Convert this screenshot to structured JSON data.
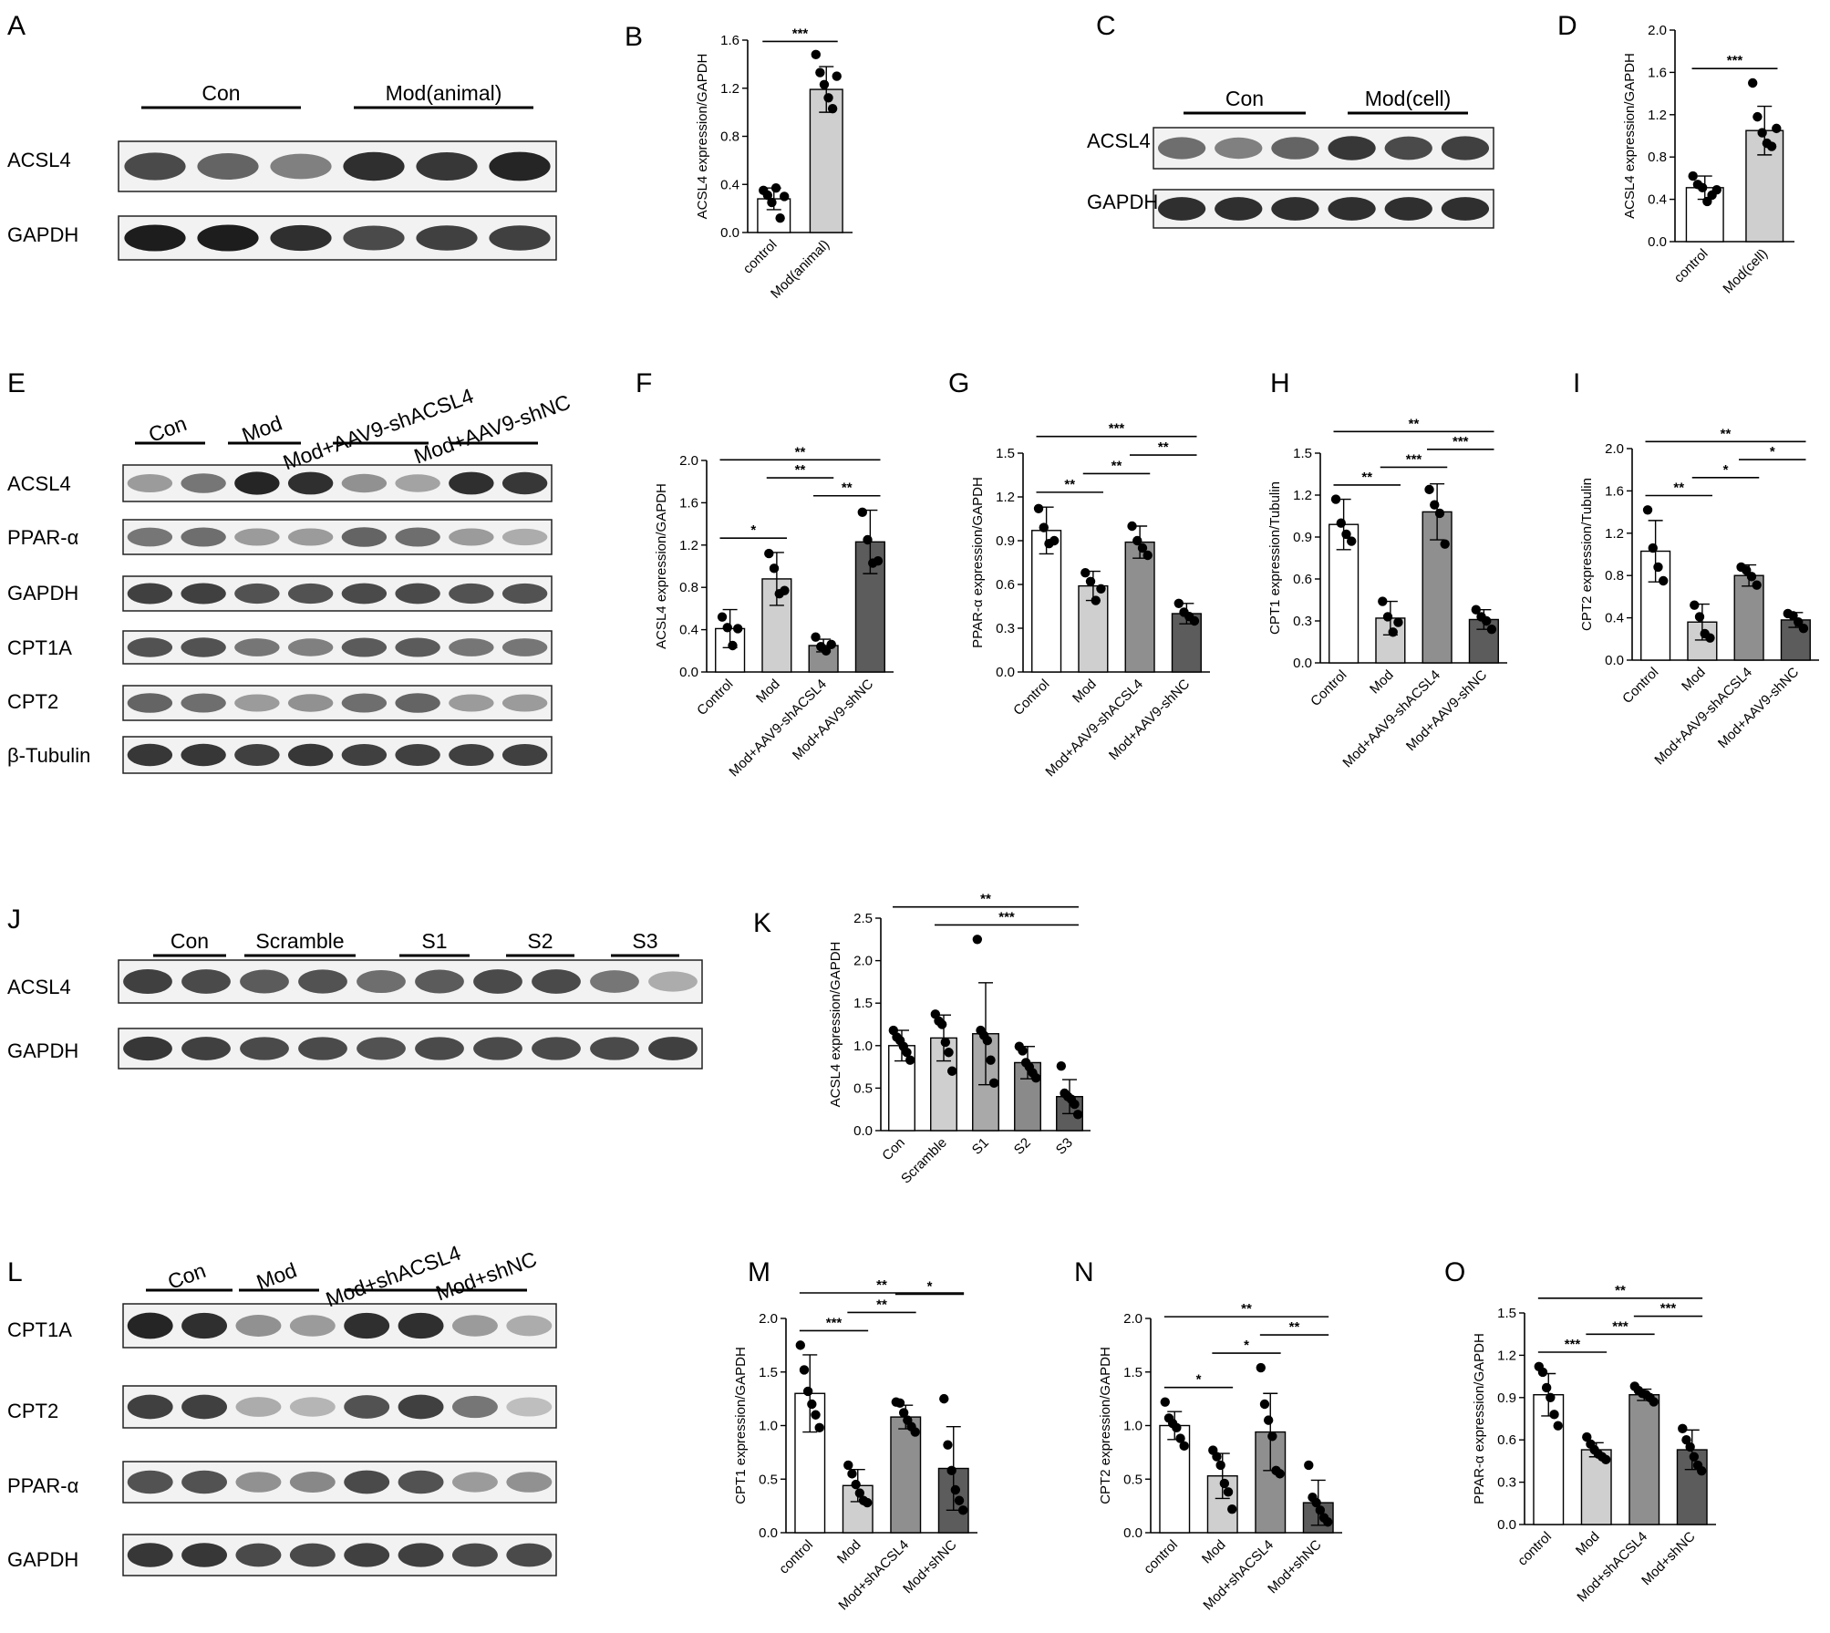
{
  "panel_labels": [
    "A",
    "B",
    "C",
    "D",
    "E",
    "F",
    "G",
    "H",
    "I",
    "J",
    "K",
    "L",
    "M",
    "N",
    "O"
  ],
  "blots": [
    {
      "panel": "A",
      "groups": [
        "Con",
        "Mod(animal)"
      ],
      "rows": [
        "ACSL4",
        "GAPDH"
      ]
    },
    {
      "panel": "C",
      "groups": [
        "Con",
        "Mod(cell)"
      ],
      "rows": [
        "ACSL4",
        "GAPDH"
      ]
    },
    {
      "panel": "E",
      "groups": [
        "Con",
        "Mod",
        "Mod+AAV9-shACSL4",
        "Mod+AAV9-shNC"
      ],
      "rows": [
        "ACSL4",
        "PPAR-α",
        "GAPDH",
        "CPT1A",
        "CPT2",
        "β-Tubulin"
      ]
    },
    {
      "panel": "J",
      "groups": [
        "Con",
        "Scramble",
        "S1",
        "S2",
        "S3"
      ],
      "rows": [
        "ACSL4",
        "GAPDH"
      ]
    },
    {
      "panel": "L",
      "groups": [
        "Con",
        "Mod",
        "Mod+shACSL4",
        "Mod+shNC"
      ],
      "rows": [
        "CPT1A",
        "CPT2",
        "PPAR-α",
        "GAPDH"
      ]
    }
  ],
  "chart_data": [
    {
      "panel": "B",
      "type": "bar",
      "ylabel": "ACSL4 expression/GAPDH",
      "ylim": [
        0,
        1.6
      ],
      "yticks": [
        "0.0",
        "0.4",
        "0.8",
        "1.2",
        "1.6"
      ],
      "categories": [
        "control",
        "Mod(animal)"
      ],
      "values": [
        0.28,
        1.19
      ],
      "sd": [
        0.09,
        0.19
      ],
      "points": [
        [
          0.35,
          0.31,
          0.25,
          0.37,
          0.12,
          0.3
        ],
        [
          1.48,
          1.33,
          1.23,
          1.12,
          1.03,
          1.3
        ]
      ],
      "fills": [
        "#ffffff",
        "#cfcfcf"
      ],
      "sig": [
        {
          "a": 0,
          "b": 1,
          "label": "***"
        }
      ]
    },
    {
      "panel": "D",
      "type": "bar",
      "ylabel": "ACSL4 expression/GAPDH",
      "ylim": [
        0,
        2.0
      ],
      "yticks": [
        "0.0",
        "0.4",
        "0.8",
        "1.2",
        "1.6",
        "2.0"
      ],
      "categories": [
        "control",
        "Mod(cell)"
      ],
      "values": [
        0.51,
        1.05
      ],
      "sd": [
        0.11,
        0.23
      ],
      "points": [
        [
          0.62,
          0.54,
          0.51,
          0.38,
          0.44,
          0.49
        ],
        [
          1.5,
          1.18,
          1.03,
          0.93,
          0.9,
          1.07
        ]
      ],
      "fills": [
        "#ffffff",
        "#cfcfcf"
      ],
      "sig": [
        {
          "a": 0,
          "b": 1,
          "label": "***"
        }
      ]
    },
    {
      "panel": "F",
      "type": "bar",
      "ylabel": "ACSL4 expression/GAPDH",
      "ylim": [
        0,
        2.0
      ],
      "yticks": [
        "0.0",
        "0.4",
        "0.8",
        "1.2",
        "1.6",
        "2.0"
      ],
      "categories": [
        "Control",
        "Mod",
        "Mod+AAV9-shACSL4",
        "Mod+AAV9-shNC"
      ],
      "values": [
        0.41,
        0.88,
        0.25,
        1.23
      ],
      "sd": [
        0.18,
        0.25,
        0.06,
        0.3
      ],
      "points": [
        [
          0.52,
          0.42,
          0.25,
          0.41
        ],
        [
          1.12,
          0.98,
          0.74,
          0.77
        ],
        [
          0.33,
          0.24,
          0.2,
          0.26
        ],
        [
          1.51,
          1.25,
          1.03,
          1.05
        ]
      ],
      "fills": [
        "#ffffff",
        "#cfcfcf",
        "#8f8f8f",
        "#5c5c5c"
      ],
      "sig": [
        {
          "a": 0,
          "b": 3,
          "label": "**"
        },
        {
          "a": 2,
          "b": 3,
          "label": "**"
        },
        {
          "a": 0,
          "b": 1,
          "label": "*"
        },
        {
          "a": 1,
          "b": 2,
          "label": "**"
        }
      ]
    },
    {
      "panel": "G",
      "type": "bar",
      "ylabel": "PPAR-α expression/GAPDH",
      "ylim": [
        0,
        1.5
      ],
      "yticks": [
        "0.0",
        "0.3",
        "0.6",
        "0.9",
        "1.2",
        "1.5"
      ],
      "categories": [
        "Control",
        "Mod",
        "Mod+AAV9-shACSL4",
        "Mod+AAV9-shNC"
      ],
      "values": [
        0.97,
        0.59,
        0.89,
        0.4
      ],
      "sd": [
        0.16,
        0.1,
        0.11,
        0.07
      ],
      "points": [
        [
          1.12,
          0.99,
          0.88,
          0.9
        ],
        [
          0.68,
          0.62,
          0.49,
          0.57
        ],
        [
          1.0,
          0.9,
          0.85,
          0.8
        ],
        [
          0.47,
          0.41,
          0.38,
          0.35
        ]
      ],
      "fills": [
        "#ffffff",
        "#cfcfcf",
        "#8f8f8f",
        "#5c5c5c"
      ],
      "sig": [
        {
          "a": 0,
          "b": 3,
          "label": "***"
        },
        {
          "a": 0,
          "b": 1,
          "label": "**"
        },
        {
          "a": 1,
          "b": 2,
          "label": "**"
        },
        {
          "a": 2,
          "b": 3,
          "label": "**"
        }
      ]
    },
    {
      "panel": "H",
      "type": "bar",
      "ylabel": "CPT1 expression/Tubulin",
      "ylim": [
        0,
        1.5
      ],
      "yticks": [
        "0.0",
        "0.3",
        "0.6",
        "0.9",
        "1.2",
        "1.5"
      ],
      "categories": [
        "Control",
        "Mod",
        "Mod+AAV9-shACSL4",
        "Mod+AAV9-shNC"
      ],
      "values": [
        0.99,
        0.32,
        1.08,
        0.31
      ],
      "sd": [
        0.18,
        0.12,
        0.2,
        0.07
      ],
      "points": [
        [
          1.17,
          1.0,
          0.92,
          0.87
        ],
        [
          0.44,
          0.33,
          0.22,
          0.29
        ],
        [
          1.24,
          1.13,
          1.07,
          0.85
        ],
        [
          0.38,
          0.33,
          0.3,
          0.24
        ]
      ],
      "fills": [
        "#ffffff",
        "#cfcfcf",
        "#8f8f8f",
        "#5c5c5c"
      ],
      "sig": [
        {
          "a": 0,
          "b": 3,
          "label": "**"
        },
        {
          "a": 0,
          "b": 1,
          "label": "**"
        },
        {
          "a": 1,
          "b": 2,
          "label": "***"
        },
        {
          "a": 2,
          "b": 3,
          "label": "***"
        }
      ]
    },
    {
      "panel": "I",
      "type": "bar",
      "ylabel": "CPT2 expression/Tubulin",
      "ylim": [
        0,
        2.0
      ],
      "yticks": [
        "0.0",
        "0.4",
        "0.8",
        "1.2",
        "1.6",
        "2.0"
      ],
      "categories": [
        "Control",
        "Mod",
        "Mod+AAV9-shACSL4",
        "Mod+AAV9-shNC"
      ],
      "values": [
        1.03,
        0.36,
        0.8,
        0.38
      ],
      "sd": [
        0.29,
        0.17,
        0.1,
        0.07
      ],
      "points": [
        [
          1.42,
          1.06,
          0.88,
          0.75
        ],
        [
          0.52,
          0.41,
          0.25,
          0.21
        ],
        [
          0.88,
          0.85,
          0.79,
          0.71
        ],
        [
          0.44,
          0.42,
          0.36,
          0.3
        ]
      ],
      "fills": [
        "#ffffff",
        "#cfcfcf",
        "#8f8f8f",
        "#5c5c5c"
      ],
      "sig": [
        {
          "a": 0,
          "b": 3,
          "label": "**"
        },
        {
          "a": 0,
          "b": 1,
          "label": "**"
        },
        {
          "a": 1,
          "b": 2,
          "label": "*"
        },
        {
          "a": 2,
          "b": 3,
          "label": "*"
        }
      ]
    },
    {
      "panel": "K",
      "type": "bar",
      "ylabel": "ACSL4 expression/GAPDH",
      "ylim": [
        0,
        2.5
      ],
      "yticks": [
        "0.0",
        "0.5",
        "1.0",
        "1.5",
        "2.0",
        "2.5"
      ],
      "categories": [
        "Con",
        "Scramble",
        "S1",
        "S2",
        "S3"
      ],
      "values": [
        1.0,
        1.09,
        1.14,
        0.8,
        0.4
      ],
      "sd": [
        0.18,
        0.27,
        0.6,
        0.19,
        0.2
      ],
      "points": [
        [
          1.18,
          1.1,
          1.06,
          0.99,
          0.92,
          0.83
        ],
        [
          1.37,
          1.29,
          1.25,
          1.04,
          0.92,
          0.7
        ],
        [
          2.25,
          1.18,
          1.12,
          1.06,
          0.83,
          0.56
        ],
        [
          0.99,
          0.94,
          0.8,
          0.75,
          0.68,
          0.62
        ],
        [
          0.76,
          0.44,
          0.4,
          0.37,
          0.31,
          0.19
        ]
      ],
      "fills": [
        "#ffffff",
        "#cfcfcf",
        "#a9a9a9",
        "#8a8a8a",
        "#5c5c5c"
      ],
      "sig": [
        {
          "a": 1,
          "b": 4,
          "label": "***"
        },
        {
          "a": 0,
          "b": 4,
          "label": "**"
        }
      ]
    },
    {
      "panel": "M",
      "type": "bar",
      "ylabel": "CPT1 expression/GAPDH",
      "ylim": [
        0,
        2.0
      ],
      "yticks": [
        "0.0",
        "0.5",
        "1.0",
        "1.5",
        "2.0"
      ],
      "categories": [
        "control",
        "Mod",
        "Mod+shACSL4",
        "Mod+shNC"
      ],
      "values": [
        1.3,
        0.44,
        1.08,
        0.6
      ],
      "sd": [
        0.36,
        0.15,
        0.11,
        0.39
      ],
      "points": [
        [
          1.75,
          1.52,
          1.32,
          1.2,
          1.1,
          0.98
        ],
        [
          0.63,
          0.55,
          0.45,
          0.37,
          0.3,
          0.28
        ],
        [
          1.22,
          1.21,
          1.12,
          1.05,
          0.99,
          0.94
        ],
        [
          1.25,
          0.82,
          0.58,
          0.4,
          0.3,
          0.21
        ]
      ],
      "fills": [
        "#ffffff",
        "#cfcfcf",
        "#8f8f8f",
        "#5c5c5c"
      ],
      "sig": [
        {
          "a": 0,
          "b": 3,
          "label": "**"
        },
        {
          "a": 0,
          "b": 1,
          "label": "***"
        },
        {
          "a": 1,
          "b": 2,
          "label": "**"
        },
        {
          "a": 2,
          "b": 3,
          "label": "*"
        }
      ]
    },
    {
      "panel": "N",
      "type": "bar",
      "ylabel": "CPT2 expression/GAPDH",
      "ylim": [
        0,
        2.0
      ],
      "yticks": [
        "0.0",
        "0.5",
        "1.0",
        "1.5",
        "2.0"
      ],
      "categories": [
        "control",
        "Mod",
        "Mod+shACSL4",
        "Mod+shNC"
      ],
      "values": [
        1.0,
        0.53,
        0.94,
        0.28
      ],
      "sd": [
        0.13,
        0.21,
        0.36,
        0.21
      ],
      "points": [
        [
          1.22,
          1.07,
          1.02,
          0.98,
          0.88,
          0.81
        ],
        [
          0.77,
          0.71,
          0.63,
          0.46,
          0.38,
          0.22
        ],
        [
          1.54,
          1.2,
          1.05,
          0.9,
          0.58,
          0.55
        ],
        [
          0.63,
          0.33,
          0.28,
          0.21,
          0.14,
          0.1
        ]
      ],
      "fills": [
        "#ffffff",
        "#cfcfcf",
        "#8f8f8f",
        "#5c5c5c"
      ],
      "sig": [
        {
          "a": 0,
          "b": 3,
          "label": "**"
        },
        {
          "a": 0,
          "b": 1,
          "label": "*"
        },
        {
          "a": 1,
          "b": 2,
          "label": "*"
        },
        {
          "a": 2,
          "b": 3,
          "label": "**"
        }
      ]
    },
    {
      "panel": "O",
      "type": "bar",
      "ylabel": "PPAR-α expression/GAPDH",
      "ylim": [
        0,
        1.5
      ],
      "yticks": [
        "0.0",
        "0.3",
        "0.6",
        "0.9",
        "1.2",
        "1.5"
      ],
      "categories": [
        "control",
        "Mod",
        "Mod+shACSL4",
        "Mod+shNC"
      ],
      "values": [
        0.92,
        0.53,
        0.92,
        0.53
      ],
      "sd": [
        0.15,
        0.05,
        0.04,
        0.14
      ],
      "points": [
        [
          1.12,
          1.08,
          0.97,
          0.9,
          0.78,
          0.7
        ],
        [
          0.62,
          0.57,
          0.53,
          0.5,
          0.48,
          0.46
        ],
        [
          0.98,
          0.95,
          0.93,
          0.92,
          0.9,
          0.87
        ],
        [
          0.68,
          0.6,
          0.55,
          0.48,
          0.42,
          0.38
        ]
      ],
      "fills": [
        "#ffffff",
        "#cfcfcf",
        "#8f8f8f",
        "#5c5c5c"
      ],
      "sig": [
        {
          "a": 0,
          "b": 3,
          "label": "**"
        },
        {
          "a": 0,
          "b": 1,
          "label": "***"
        },
        {
          "a": 1,
          "b": 2,
          "label": "***"
        },
        {
          "a": 2,
          "b": 3,
          "label": "***"
        }
      ]
    }
  ]
}
